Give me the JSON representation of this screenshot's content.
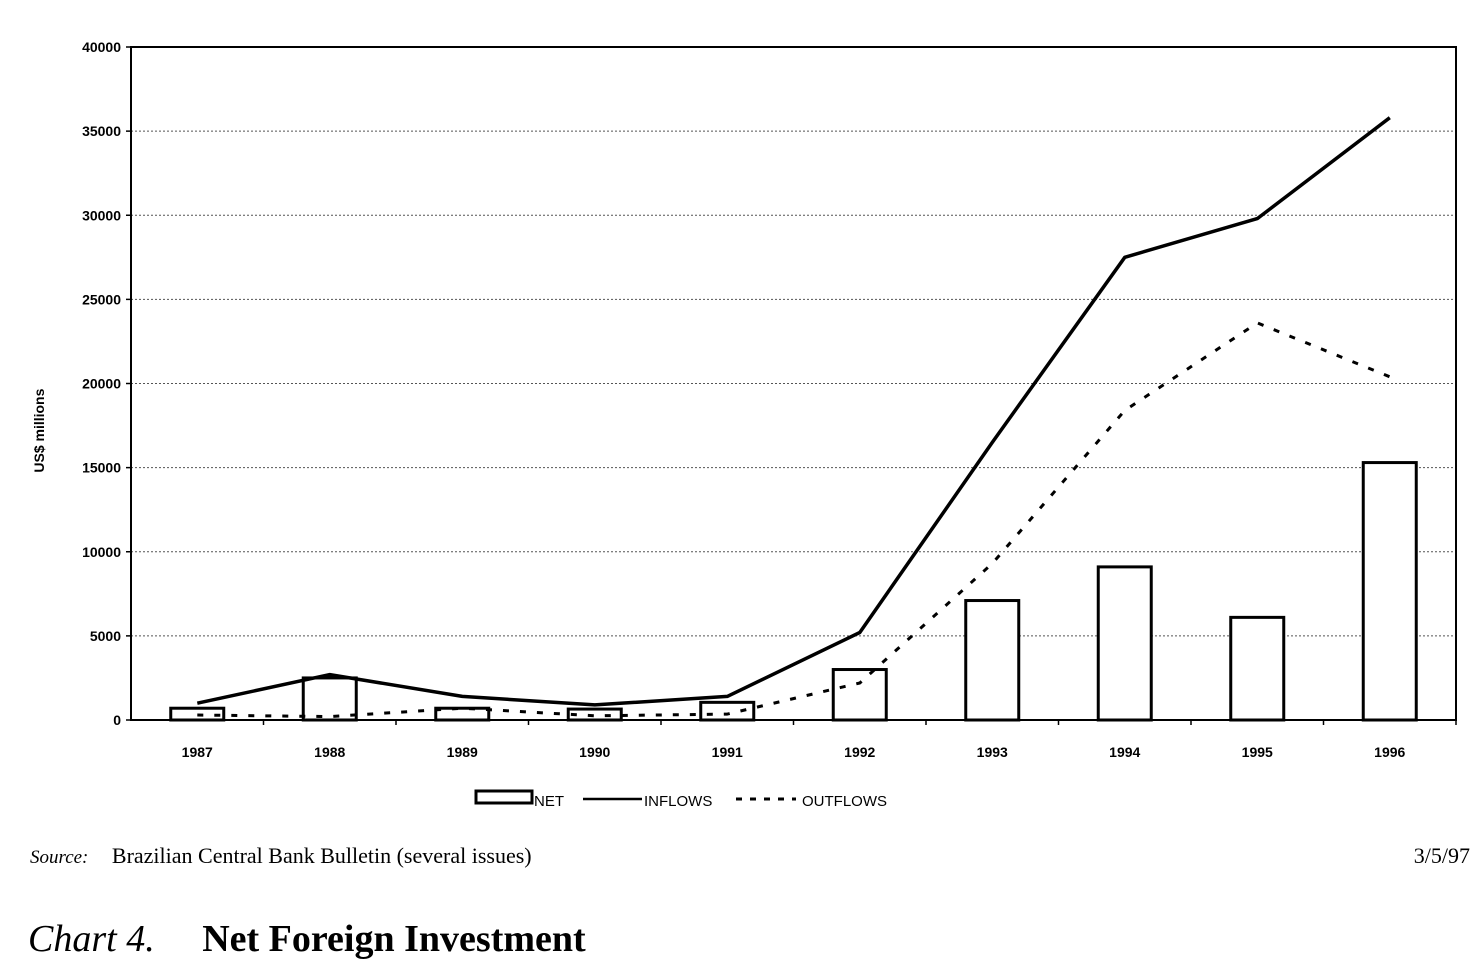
{
  "chart_data": {
    "type": "bar",
    "categories": [
      "1987",
      "1988",
      "1989",
      "1990",
      "1991",
      "1992",
      "1993",
      "1994",
      "1995",
      "1996"
    ],
    "series": [
      {
        "name": "NET",
        "kind": "bar",
        "values": [
          700,
          2500,
          700,
          650,
          1050,
          3000,
          7100,
          9100,
          6100,
          15300
        ]
      },
      {
        "name": "INFLOWS",
        "kind": "line",
        "style": "solid",
        "values": [
          1000,
          2700,
          1400,
          900,
          1400,
          5200,
          16500,
          27500,
          29800,
          35800
        ]
      },
      {
        "name": "OUTFLOWS",
        "kind": "line",
        "style": "dashed",
        "values": [
          300,
          200,
          700,
          250,
          350,
          2200,
          9300,
          18400,
          23600,
          20400
        ]
      }
    ],
    "ylabel": "US$ millions",
    "ylim": [
      0,
      40000
    ],
    "yticks": [
      "0",
      "5000",
      "10000",
      "15000",
      "20000",
      "25000",
      "30000",
      "35000",
      "40000"
    ],
    "grid": true,
    "legend_position": "bottom"
  },
  "source": {
    "label": "Source:",
    "text": "Brazilian Central Bank Bulletin (several issues)",
    "date": "3/5/97"
  },
  "caption": {
    "number": "Chart 4.",
    "title": "Net Foreign Investment"
  }
}
